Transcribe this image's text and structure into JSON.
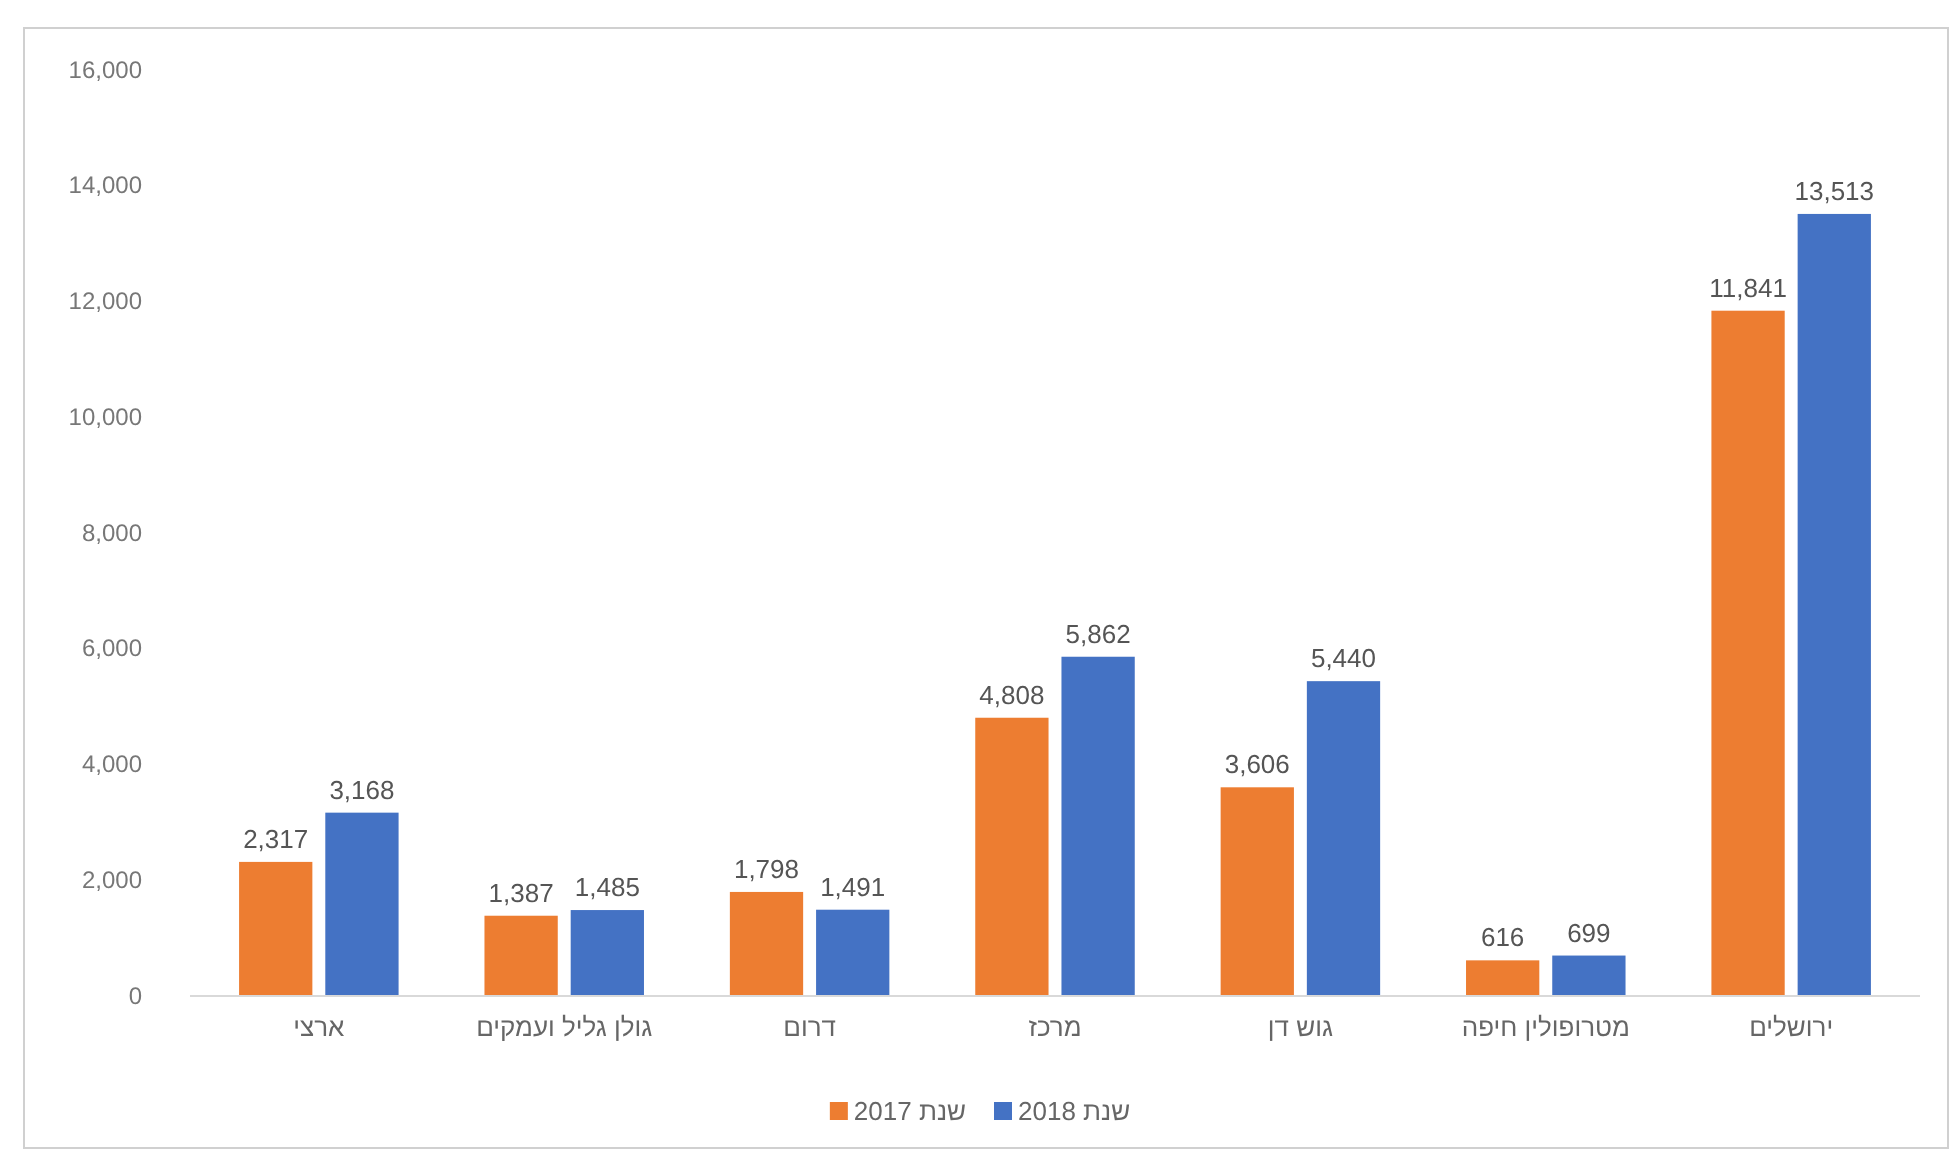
{
  "chart_data": {
    "type": "bar",
    "categories": [
      "ארצי",
      "גולן גליל ועמקים",
      "דרום",
      "מרכז",
      "גוש דן",
      "מטרופולין חיפה",
      "ירושלים"
    ],
    "series": [
      {
        "name": "שנת 2017",
        "color": "#ed7d31",
        "values": [
          2317,
          1387,
          1798,
          4808,
          3606,
          616,
          11841
        ],
        "value_labels": [
          "2,317",
          "1,387",
          "1,798",
          "4,808",
          "3,606",
          "616",
          "11,841"
        ]
      },
      {
        "name": "שנת 2018",
        "color": "#4472c4",
        "values": [
          3168,
          1485,
          1491,
          5862,
          5440,
          699,
          13513
        ],
        "value_labels": [
          "3,168",
          "1,485",
          "1,491",
          "5,862",
          "5,440",
          "699",
          "13,513"
        ]
      }
    ],
    "ylim": [
      0,
      16000
    ],
    "yticks": [
      0,
      {
        "value": 2000,
        "label": "2,000"
      },
      {
        "value": 4000,
        "label": "4,000"
      },
      {
        "value": 6000,
        "label": "6,000"
      },
      {
        "value": 8000,
        "label": "8,000"
      },
      {
        "value": 10000,
        "label": "10,000"
      },
      {
        "value": 12000,
        "label": "12,000"
      },
      {
        "value": 14000,
        "label": "14,000"
      },
      {
        "value": 16000,
        "label": "16,000"
      }
    ],
    "grid": false,
    "legend": "bottom"
  }
}
